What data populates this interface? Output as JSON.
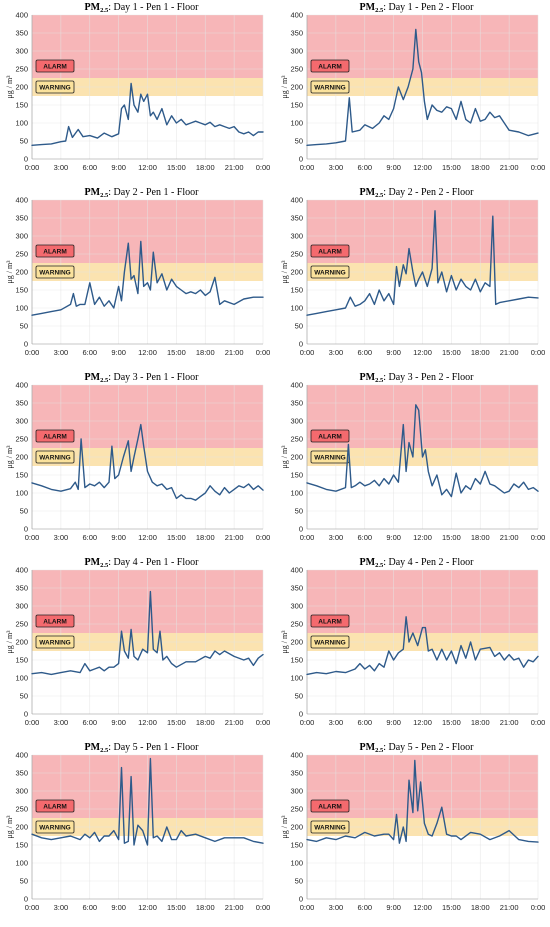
{
  "colors": {
    "alarm_zone": "#f7b6b8",
    "warning_zone": "#fbe3b0",
    "alarm_badge": "#f46a6e",
    "warning_badge": "#fbe29c",
    "line": "#2e5a8a",
    "grid": "#e3e3e3"
  },
  "labels": {
    "alarm": "ALARM",
    "warning": "WARNING",
    "ylabel": "μg / m³",
    "title_prefix": "PM",
    "title_sub": "2.5"
  },
  "chart_data": [
    {
      "type": "line",
      "title": "PM2.5: Day 1 - Pen 1 - Floor",
      "title_rest": ": Day 1 - Pen 1 - Floor",
      "xlabel": "",
      "ylabel": "μg / m³",
      "x_ticks": [
        "0:00",
        "3:00",
        "6:00",
        "9:00",
        "12:00",
        "15:00",
        "18:00",
        "21:00",
        "0:00"
      ],
      "y_ticks": [
        0,
        50,
        100,
        150,
        200,
        250,
        300,
        350,
        400
      ],
      "xlim": [
        0,
        24
      ],
      "ylim": [
        0,
        400
      ],
      "warning_range": [
        175,
        225
      ],
      "alarm_range": [
        225,
        400
      ],
      "grid": true,
      "x": [
        0,
        1,
        2,
        3,
        3.5,
        3.8,
        4.2,
        4.8,
        5.3,
        6,
        6.8,
        7.5,
        8.3,
        9,
        9.3,
        9.6,
        10,
        10.3,
        10.6,
        11,
        11.3,
        11.6,
        12,
        12.3,
        12.6,
        13,
        13.5,
        14,
        14.5,
        15,
        15.5,
        16,
        16.5,
        17,
        17.5,
        18,
        18.5,
        19,
        19.5,
        20,
        20.5,
        21,
        21.5,
        22,
        22.5,
        23,
        23.5,
        24
      ],
      "y": [
        38,
        40,
        42,
        48,
        50,
        90,
        60,
        82,
        62,
        65,
        58,
        72,
        62,
        70,
        140,
        150,
        110,
        210,
        150,
        130,
        180,
        160,
        180,
        120,
        130,
        110,
        140,
        95,
        120,
        100,
        110,
        95,
        100,
        105,
        100,
        95,
        102,
        90,
        95,
        90,
        85,
        90,
        75,
        70,
        75,
        65,
        75,
        75
      ]
    },
    {
      "type": "line",
      "title": "PM2.5: Day 1 - Pen 2 - Floor",
      "title_rest": ": Day 1 - Pen 2 - Floor",
      "xlabel": "",
      "ylabel": "μg / m³",
      "x_ticks": [
        "0:00",
        "3:00",
        "6:00",
        "9:00",
        "12:00",
        "15:00",
        "18:00",
        "21:00",
        "0:00"
      ],
      "y_ticks": [
        0,
        50,
        100,
        150,
        200,
        250,
        300,
        350,
        400
      ],
      "xlim": [
        0,
        24
      ],
      "ylim": [
        0,
        400
      ],
      "warning_range": [
        175,
        225
      ],
      "alarm_range": [
        225,
        400
      ],
      "grid": true,
      "x": [
        0,
        1,
        2,
        3,
        4,
        4.4,
        4.7,
        5.5,
        6,
        6.8,
        7.5,
        8,
        8.5,
        9,
        9.5,
        10,
        10.5,
        11,
        11.3,
        11.6,
        11.9,
        12.2,
        12.5,
        13,
        13.5,
        14,
        14.5,
        15,
        15.5,
        16,
        16.5,
        17,
        17.5,
        18,
        18.5,
        19,
        19.5,
        20,
        20.5,
        21,
        22,
        23,
        24
      ],
      "y": [
        38,
        40,
        42,
        45,
        50,
        170,
        75,
        80,
        95,
        85,
        100,
        120,
        110,
        140,
        200,
        165,
        200,
        250,
        360,
        270,
        240,
        160,
        110,
        150,
        135,
        130,
        145,
        140,
        110,
        160,
        110,
        100,
        140,
        105,
        110,
        130,
        115,
        120,
        100,
        80,
        75,
        65,
        72
      ]
    },
    {
      "type": "line",
      "title": "PM2.5: Day 2 - Pen 1 - Floor",
      "title_rest": ": Day 2 - Pen 1 - Floor",
      "xlabel": "",
      "ylabel": "μg / m³",
      "x_ticks": [
        "0:00",
        "3:00",
        "6:00",
        "9:00",
        "12:00",
        "15:00",
        "18:00",
        "21:00",
        "0:00"
      ],
      "y_ticks": [
        0,
        50,
        100,
        150,
        200,
        250,
        300,
        350,
        400
      ],
      "xlim": [
        0,
        24
      ],
      "ylim": [
        0,
        400
      ],
      "warning_range": [
        175,
        225
      ],
      "alarm_range": [
        225,
        400
      ],
      "grid": true,
      "x": [
        0,
        1,
        2,
        3,
        4,
        4.3,
        4.6,
        5,
        5.5,
        6,
        6.5,
        7,
        7.5,
        8,
        8.5,
        9,
        9.3,
        9.6,
        10,
        10.3,
        10.6,
        11,
        11.3,
        11.6,
        12,
        12.3,
        12.6,
        13,
        13.5,
        14,
        14.5,
        15,
        15.5,
        16,
        16.5,
        17,
        17.5,
        18,
        18.5,
        19,
        19.5,
        20,
        21,
        22,
        23,
        24
      ],
      "y": [
        80,
        85,
        90,
        95,
        110,
        140,
        105,
        110,
        110,
        170,
        110,
        130,
        105,
        120,
        100,
        160,
        120,
        200,
        280,
        180,
        190,
        140,
        285,
        160,
        170,
        150,
        255,
        170,
        195,
        150,
        180,
        160,
        150,
        140,
        145,
        140,
        150,
        135,
        145,
        185,
        110,
        120,
        110,
        125,
        130,
        130
      ]
    },
    {
      "type": "line",
      "title": "PM2.5: Day 2 - Pen 2 - Floor",
      "title_rest": ": Day 2 - Pen 2 - Floor",
      "xlabel": "",
      "ylabel": "μg / m³",
      "x_ticks": [
        "0:00",
        "3:00",
        "6:00",
        "9:00",
        "12:00",
        "15:00",
        "18:00",
        "21:00",
        "0:00"
      ],
      "y_ticks": [
        0,
        50,
        100,
        150,
        200,
        250,
        300,
        350,
        400
      ],
      "xlim": [
        0,
        24
      ],
      "ylim": [
        0,
        400
      ],
      "warning_range": [
        175,
        225
      ],
      "alarm_range": [
        225,
        400
      ],
      "grid": true,
      "x": [
        0,
        1,
        2,
        3,
        4,
        4.5,
        5,
        5.5,
        6,
        6.5,
        7,
        7.5,
        8,
        8.5,
        9,
        9.3,
        9.6,
        10,
        10.3,
        10.6,
        11,
        11.3,
        11.6,
        12,
        12.5,
        13,
        13.3,
        13.6,
        14,
        14.5,
        15,
        15.5,
        16,
        16.5,
        17,
        17.5,
        18,
        18.5,
        19,
        19.3,
        19.6,
        20,
        21,
        22,
        23,
        24
      ],
      "y": [
        80,
        85,
        90,
        95,
        100,
        130,
        105,
        110,
        120,
        140,
        110,
        150,
        120,
        140,
        110,
        215,
        160,
        220,
        195,
        265,
        200,
        160,
        180,
        200,
        160,
        210,
        370,
        170,
        200,
        145,
        190,
        150,
        180,
        160,
        150,
        180,
        145,
        170,
        160,
        355,
        110,
        115,
        120,
        125,
        130,
        128
      ]
    },
    {
      "type": "line",
      "title": "PM2.5: Day 3 - Pen 1 - Floor",
      "title_rest": ": Day 3 - Pen 1 - Floor",
      "xlabel": "",
      "ylabel": "μg / m³",
      "x_ticks": [
        "0:00",
        "3:00",
        "6:00",
        "9:00",
        "12:00",
        "15:00",
        "18:00",
        "21:00",
        "0:00"
      ],
      "y_ticks": [
        0,
        50,
        100,
        150,
        200,
        250,
        300,
        350,
        400
      ],
      "xlim": [
        0,
        24
      ],
      "ylim": [
        0,
        400
      ],
      "warning_range": [
        175,
        225
      ],
      "alarm_range": [
        225,
        400
      ],
      "grid": true,
      "x": [
        0,
        1,
        2,
        3,
        4,
        4.5,
        4.8,
        5.1,
        5.5,
        6,
        6.5,
        7,
        7.5,
        8,
        8.3,
        8.6,
        9,
        9.5,
        10,
        10.3,
        10.6,
        11,
        11.3,
        11.6,
        12,
        12.5,
        13,
        13.5,
        14,
        14.5,
        15,
        15.5,
        16,
        16.5,
        17,
        17.5,
        18,
        18.5,
        19,
        19.5,
        20,
        20.5,
        21,
        21.5,
        22,
        22.5,
        23,
        23.5,
        24
      ],
      "y": [
        128,
        120,
        110,
        105,
        112,
        130,
        110,
        250,
        115,
        125,
        120,
        130,
        115,
        130,
        230,
        140,
        150,
        200,
        245,
        160,
        200,
        250,
        290,
        230,
        160,
        130,
        120,
        125,
        110,
        115,
        85,
        95,
        85,
        85,
        80,
        90,
        100,
        120,
        105,
        95,
        115,
        100,
        110,
        120,
        115,
        125,
        110,
        120,
        108
      ]
    },
    {
      "type": "line",
      "title": "PM2.5: Day 3 - Pen 2 - Floor",
      "title_rest": ": Day 3 - Pen 2 - Floor",
      "xlabel": "",
      "ylabel": "μg / m³",
      "x_ticks": [
        "0:00",
        "3:00",
        "6:00",
        "9:00",
        "12:00",
        "15:00",
        "18:00",
        "21:00",
        "0:00"
      ],
      "y_ticks": [
        0,
        50,
        100,
        150,
        200,
        250,
        300,
        350,
        400
      ],
      "xlim": [
        0,
        24
      ],
      "ylim": [
        0,
        400
      ],
      "warning_range": [
        175,
        225
      ],
      "alarm_range": [
        225,
        400
      ],
      "grid": true,
      "x": [
        0,
        1,
        2,
        3,
        4,
        4.3,
        4.6,
        5,
        5.5,
        6,
        6.5,
        7,
        7.5,
        8,
        8.5,
        9,
        9.5,
        10,
        10.3,
        10.6,
        11,
        11.3,
        11.6,
        12,
        12.3,
        12.6,
        13,
        13.5,
        14,
        14.5,
        15,
        15.5,
        16,
        16.5,
        17,
        17.5,
        18,
        18.5,
        19,
        19.5,
        20,
        20.5,
        21,
        21.5,
        22,
        22.5,
        23,
        23.5,
        24
      ],
      "y": [
        128,
        120,
        110,
        105,
        115,
        235,
        115,
        120,
        130,
        120,
        125,
        135,
        120,
        140,
        125,
        150,
        130,
        290,
        160,
        240,
        200,
        345,
        330,
        200,
        220,
        160,
        120,
        150,
        95,
        110,
        90,
        155,
        100,
        120,
        110,
        140,
        125,
        160,
        125,
        120,
        110,
        100,
        105,
        125,
        115,
        130,
        110,
        115,
        105
      ]
    },
    {
      "type": "line",
      "title": "PM2.5: Day 4 - Pen 1 - Floor",
      "title_rest": ": Day 4 - Pen 1 - Floor",
      "xlabel": "",
      "ylabel": "μg / m³",
      "x_ticks": [
        "0:00",
        "3:00",
        "6:00",
        "9:00",
        "12:00",
        "15:00",
        "18:00",
        "21:00",
        "0:00"
      ],
      "y_ticks": [
        0,
        50,
        100,
        150,
        200,
        250,
        300,
        350,
        400
      ],
      "xlim": [
        0,
        24
      ],
      "ylim": [
        0,
        400
      ],
      "warning_range": [
        175,
        225
      ],
      "alarm_range": [
        225,
        400
      ],
      "grid": true,
      "x": [
        0,
        1,
        2,
        3,
        4,
        5,
        5.5,
        6,
        6.5,
        7,
        7.5,
        8,
        8.5,
        9,
        9.3,
        9.6,
        10,
        10.3,
        10.6,
        11,
        11.5,
        12,
        12.3,
        12.6,
        13,
        13.3,
        13.6,
        14,
        14.5,
        15,
        16,
        17,
        18,
        18.5,
        19,
        19.5,
        20,
        21,
        22,
        22.5,
        23,
        23.5,
        24
      ],
      "y": [
        112,
        115,
        110,
        115,
        120,
        115,
        140,
        120,
        125,
        130,
        120,
        130,
        130,
        140,
        230,
        175,
        155,
        235,
        160,
        150,
        180,
        170,
        340,
        180,
        170,
        230,
        150,
        160,
        140,
        130,
        145,
        145,
        160,
        155,
        175,
        165,
        175,
        160,
        150,
        155,
        135,
        155,
        165
      ]
    },
    {
      "type": "line",
      "title": "PM2.5: Day 4 - Pen 2 - Floor",
      "title_rest": ": Day 4 - Pen 2 - Floor",
      "xlabel": "",
      "ylabel": "μg / m³",
      "x_ticks": [
        "0:00",
        "3:00",
        "6:00",
        "9:00",
        "12:00",
        "15:00",
        "18:00",
        "21:00",
        "0:00"
      ],
      "y_ticks": [
        0,
        50,
        100,
        150,
        200,
        250,
        300,
        350,
        400
      ],
      "xlim": [
        0,
        24
      ],
      "ylim": [
        0,
        400
      ],
      "warning_range": [
        175,
        225
      ],
      "alarm_range": [
        225,
        400
      ],
      "grid": true,
      "x": [
        0,
        1,
        2,
        3,
        4,
        5,
        5.5,
        6,
        6.5,
        7,
        7.5,
        8,
        8.5,
        9,
        9.5,
        10,
        10.3,
        10.6,
        11,
        11.5,
        12,
        12.3,
        12.6,
        13,
        13.5,
        14,
        14.5,
        15,
        15.5,
        16,
        16.5,
        17,
        17.5,
        18,
        19,
        19.5,
        20,
        20.5,
        21,
        21.5,
        22,
        22.5,
        23,
        23.5,
        24
      ],
      "y": [
        110,
        115,
        112,
        118,
        115,
        125,
        140,
        125,
        135,
        120,
        140,
        130,
        175,
        150,
        170,
        180,
        270,
        200,
        225,
        190,
        240,
        240,
        175,
        180,
        150,
        180,
        150,
        175,
        140,
        190,
        155,
        200,
        150,
        180,
        185,
        160,
        170,
        150,
        165,
        150,
        155,
        130,
        150,
        145,
        160
      ]
    },
    {
      "type": "line",
      "title": "PM2.5: Day 5 - Pen 1 - Floor",
      "title_rest": ": Day 5 - Pen 1 - Floor",
      "xlabel": "",
      "ylabel": "μg / m³",
      "x_ticks": [
        "0:00",
        "3:00",
        "6:00",
        "9:00",
        "12:00",
        "15:00",
        "18:00",
        "21:00",
        "0:00"
      ],
      "y_ticks": [
        0,
        50,
        100,
        150,
        200,
        250,
        300,
        350,
        400
      ],
      "xlim": [
        0,
        24
      ],
      "ylim": [
        0,
        400
      ],
      "warning_range": [
        175,
        225
      ],
      "alarm_range": [
        225,
        400
      ],
      "grid": true,
      "x": [
        0,
        1,
        2,
        3,
        4,
        5,
        5.5,
        6,
        6.5,
        7,
        7.5,
        8,
        8.5,
        9,
        9.3,
        9.6,
        10,
        10.3,
        10.6,
        11,
        11.5,
        12,
        12.3,
        12.6,
        13,
        13.5,
        14,
        14.5,
        15,
        15.5,
        16,
        17,
        18,
        19,
        20,
        21,
        22,
        23,
        24
      ],
      "y": [
        180,
        170,
        165,
        170,
        175,
        165,
        180,
        170,
        185,
        160,
        175,
        175,
        190,
        165,
        365,
        155,
        160,
        340,
        150,
        205,
        190,
        150,
        390,
        170,
        175,
        160,
        200,
        165,
        165,
        190,
        175,
        180,
        170,
        160,
        170,
        170,
        170,
        160,
        155
      ]
    },
    {
      "type": "line",
      "title": "PM2.5: Day 5 - Pen 2 - Floor",
      "title_rest": ": Day 5 - Pen 2 - Floor",
      "xlabel": "",
      "ylabel": "μg / m³",
      "x_ticks": [
        "0:00",
        "3:00",
        "6:00",
        "9:00",
        "12:00",
        "15:00",
        "18:00",
        "21:00",
        "0:00"
      ],
      "y_ticks": [
        0,
        50,
        100,
        150,
        200,
        250,
        300,
        350,
        400
      ],
      "xlim": [
        0,
        24
      ],
      "ylim": [
        0,
        400
      ],
      "warning_range": [
        175,
        225
      ],
      "alarm_range": [
        225,
        400
      ],
      "grid": true,
      "x": [
        0,
        1,
        2,
        3,
        4,
        5,
        6,
        7,
        8,
        8.5,
        9,
        9.3,
        9.6,
        10,
        10.3,
        10.6,
        11,
        11.2,
        11.5,
        11.8,
        12.2,
        12.6,
        13,
        13.5,
        14,
        14.5,
        15,
        15.5,
        16,
        17,
        18,
        19,
        20,
        21,
        22,
        23,
        24
      ],
      "y": [
        165,
        160,
        170,
        165,
        175,
        170,
        185,
        175,
        180,
        180,
        165,
        235,
        155,
        200,
        160,
        330,
        240,
        385,
        245,
        325,
        210,
        180,
        175,
        210,
        255,
        180,
        175,
        175,
        165,
        185,
        180,
        165,
        175,
        190,
        165,
        160,
        158
      ]
    }
  ]
}
